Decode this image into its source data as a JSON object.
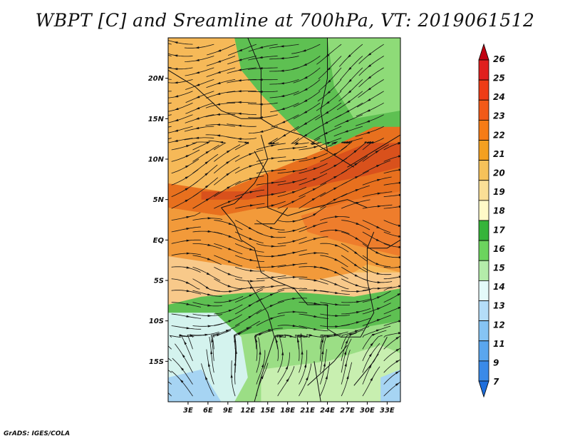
{
  "title": "WBPT [C] and Sreamline at 700hPa, VT: 2019061512",
  "credit": "GrADS: IGES/COLA",
  "map": {
    "lon_range": [
      0,
      35
    ],
    "lat_range": [
      -20,
      25
    ],
    "lat_labels": [
      {
        "lat": 20,
        "text": "20N"
      },
      {
        "lat": 15,
        "text": "15N"
      },
      {
        "lat": 10,
        "text": "10N"
      },
      {
        "lat": 5,
        "text": "5N"
      },
      {
        "lat": 0,
        "text": "EQ"
      },
      {
        "lat": -5,
        "text": "5S"
      },
      {
        "lat": -10,
        "text": "10S"
      },
      {
        "lat": -15,
        "text": "15S"
      }
    ],
    "lon_labels": [
      {
        "lon": 3,
        "text": "3E"
      },
      {
        "lon": 6,
        "text": "6E"
      },
      {
        "lon": 9,
        "text": "9E"
      },
      {
        "lon": 12,
        "text": "12E"
      },
      {
        "lon": 15,
        "text": "15E"
      },
      {
        "lon": 18,
        "text": "18E"
      },
      {
        "lon": 21,
        "text": "21E"
      },
      {
        "lon": 24,
        "text": "24E"
      },
      {
        "lon": 27,
        "text": "27E"
      },
      {
        "lon": 30,
        "text": "30E"
      },
      {
        "lon": 33,
        "text": "33E"
      }
    ],
    "regions": [
      {
        "name": "north-warm",
        "color": "#f6b958",
        "pts": [
          [
            0,
            25
          ],
          [
            35,
            25
          ],
          [
            35,
            10
          ],
          [
            0,
            10
          ]
        ]
      },
      {
        "name": "sahel-green",
        "color": "#5ec052",
        "pts": [
          [
            10,
            25
          ],
          [
            35,
            25
          ],
          [
            35,
            14
          ],
          [
            26,
            11
          ],
          [
            20,
            13
          ],
          [
            14,
            18
          ],
          [
            11,
            21
          ]
        ]
      },
      {
        "name": "green-light",
        "color": "#8edb78",
        "pts": [
          [
            24,
            25
          ],
          [
            35,
            25
          ],
          [
            35,
            16
          ],
          [
            28,
            15
          ],
          [
            25,
            19
          ]
        ]
      },
      {
        "name": "orange-band",
        "color": "#e8701e",
        "pts": [
          [
            0,
            7
          ],
          [
            8,
            6
          ],
          [
            14,
            8
          ],
          [
            20,
            10
          ],
          [
            26,
            12
          ],
          [
            31,
            14
          ],
          [
            35,
            14
          ],
          [
            35,
            6
          ],
          [
            30,
            5
          ],
          [
            26,
            4
          ],
          [
            20,
            4
          ],
          [
            14,
            4
          ],
          [
            8,
            3
          ],
          [
            0,
            4
          ]
        ]
      },
      {
        "name": "dark-orange",
        "color": "#d9511c",
        "pts": [
          [
            5,
            6
          ],
          [
            12,
            6
          ],
          [
            18,
            8
          ],
          [
            24,
            10
          ],
          [
            30,
            12
          ],
          [
            35,
            12
          ],
          [
            35,
            9
          ],
          [
            30,
            8
          ],
          [
            24,
            7
          ],
          [
            18,
            6
          ],
          [
            12,
            5
          ],
          [
            5,
            5
          ]
        ]
      },
      {
        "name": "mid-orange",
        "color": "#f29a3a",
        "pts": [
          [
            0,
            4
          ],
          [
            8,
            3
          ],
          [
            14,
            4
          ],
          [
            20,
            4
          ],
          [
            26,
            4
          ],
          [
            35,
            6
          ],
          [
            35,
            -4
          ],
          [
            30,
            -3
          ],
          [
            24,
            -6
          ],
          [
            16,
            -8
          ],
          [
            8,
            -7
          ],
          [
            0,
            -6
          ]
        ]
      },
      {
        "name": "east-orange",
        "color": "#ee7d2c",
        "pts": [
          [
            20,
            3
          ],
          [
            28,
            5
          ],
          [
            35,
            6
          ],
          [
            35,
            -2
          ],
          [
            30,
            -1
          ],
          [
            25,
            0
          ],
          [
            21,
            1
          ]
        ]
      },
      {
        "name": "tan",
        "color": "#f8c98a",
        "pts": [
          [
            0,
            -2
          ],
          [
            8,
            -3
          ],
          [
            16,
            -4
          ],
          [
            22,
            -5
          ],
          [
            28,
            -4
          ],
          [
            35,
            -4
          ],
          [
            35,
            -8
          ],
          [
            28,
            -8
          ],
          [
            20,
            -7
          ],
          [
            12,
            -7
          ],
          [
            5,
            -8
          ],
          [
            0,
            -8
          ]
        ]
      },
      {
        "name": "south-green",
        "color": "#5ec052",
        "pts": [
          [
            0,
            -8
          ],
          [
            5,
            -7
          ],
          [
            12,
            -6.5
          ],
          [
            20,
            -6.5
          ],
          [
            28,
            -7
          ],
          [
            35,
            -6
          ],
          [
            35,
            -12
          ],
          [
            25,
            -13
          ],
          [
            15,
            -13
          ],
          [
            5,
            -12
          ],
          [
            0,
            -12
          ]
        ]
      },
      {
        "name": "south-lightgreen",
        "color": "#9bde85",
        "pts": [
          [
            8,
            -12
          ],
          [
            18,
            -11
          ],
          [
            28,
            -11
          ],
          [
            35,
            -10
          ],
          [
            35,
            -20
          ],
          [
            8,
            -20
          ]
        ]
      },
      {
        "name": "south-pale",
        "color": "#c8efb0",
        "pts": [
          [
            14,
            -16
          ],
          [
            24,
            -15
          ],
          [
            32,
            -13
          ],
          [
            35,
            -14
          ],
          [
            35,
            -20
          ],
          [
            14,
            -20
          ]
        ]
      },
      {
        "name": "sw-cyan",
        "color": "#d4f3ee",
        "pts": [
          [
            0,
            -9
          ],
          [
            7,
            -9
          ],
          [
            11,
            -12
          ],
          [
            12,
            -17
          ],
          [
            10,
            -20
          ],
          [
            0,
            -20
          ]
        ]
      },
      {
        "name": "sw-blue",
        "color": "#a6d4f3",
        "pts": [
          [
            0,
            -17
          ],
          [
            5,
            -16
          ],
          [
            8,
            -20
          ],
          [
            0,
            -20
          ]
        ]
      },
      {
        "name": "se-blue",
        "color": "#a6d4f3",
        "pts": [
          [
            32,
            -17
          ],
          [
            35,
            -16
          ],
          [
            35,
            -20
          ],
          [
            32,
            -20
          ]
        ]
      }
    ],
    "borders": [
      [
        [
          0,
          21
        ],
        [
          4,
          19
        ],
        [
          8,
          16
        ],
        [
          11,
          15
        ],
        [
          14,
          15
        ],
        [
          16,
          14
        ],
        [
          20,
          13
        ],
        [
          24,
          11
        ]
      ],
      [
        [
          12,
          25
        ],
        [
          14,
          21
        ],
        [
          14,
          15
        ]
      ],
      [
        [
          24,
          25
        ],
        [
          24,
          20
        ],
        [
          23,
          16
        ],
        [
          24,
          11
        ],
        [
          28,
          9
        ]
      ],
      [
        [
          13,
          11
        ],
        [
          15,
          8
        ],
        [
          15,
          4
        ],
        [
          18,
          3
        ],
        [
          22,
          4
        ],
        [
          27,
          5
        ],
        [
          30,
          4
        ]
      ],
      [
        [
          8,
          4
        ],
        [
          10,
          4.5
        ],
        [
          13,
          7
        ],
        [
          15,
          10
        ],
        [
          14,
          13
        ]
      ],
      [
        [
          8,
          4
        ],
        [
          10,
          2
        ],
        [
          11,
          0
        ],
        [
          13,
          -1
        ],
        [
          14,
          -4
        ],
        [
          16,
          -5
        ],
        [
          19,
          -6
        ]
      ],
      [
        [
          13,
          2
        ],
        [
          16,
          2
        ],
        [
          18,
          4
        ]
      ],
      [
        [
          19,
          -6
        ],
        [
          21,
          -8
        ],
        [
          24,
          -8
        ],
        [
          24,
          -11
        ],
        [
          26,
          -12
        ],
        [
          29,
          -12
        ],
        [
          31,
          -9
        ],
        [
          30,
          -5
        ],
        [
          30,
          -1
        ],
        [
          31,
          1
        ]
      ],
      [
        [
          12,
          -5
        ],
        [
          15,
          -9
        ],
        [
          16,
          -12
        ],
        [
          14,
          -17
        ],
        [
          13,
          -20
        ]
      ],
      [
        [
          21,
          -18
        ],
        [
          25,
          -15
        ],
        [
          27,
          -13
        ]
      ],
      [
        [
          28,
          -18
        ],
        [
          31,
          -15
        ],
        [
          33,
          -12
        ]
      ],
      [
        [
          22,
          -15
        ],
        [
          23,
          -20
        ]
      ],
      [
        [
          30,
          -1
        ],
        [
          33,
          -1
        ],
        [
          35,
          0
        ]
      ],
      [
        [
          27,
          9
        ],
        [
          29,
          10
        ],
        [
          33,
          12
        ],
        [
          35,
          13
        ]
      ]
    ],
    "colorbar": {
      "levels": [
        "26",
        "25",
        "24",
        "23",
        "22",
        "21",
        "20",
        "19",
        "18",
        "17",
        "16",
        "15",
        "14",
        "13",
        "12",
        "11",
        "9",
        "7"
      ],
      "colors": [
        "#c00010",
        "#e0201e",
        "#ee3c16",
        "#f25a18",
        "#f67c16",
        "#f4a020",
        "#f6c25a",
        "#fadf96",
        "#fffac8",
        "#36b43a",
        "#6cd45e",
        "#b4ecaa",
        "#e4fafa",
        "#b4ddf8",
        "#86c4f4",
        "#5aa6ee",
        "#3a8ae8",
        "#1e6edc"
      ]
    }
  }
}
